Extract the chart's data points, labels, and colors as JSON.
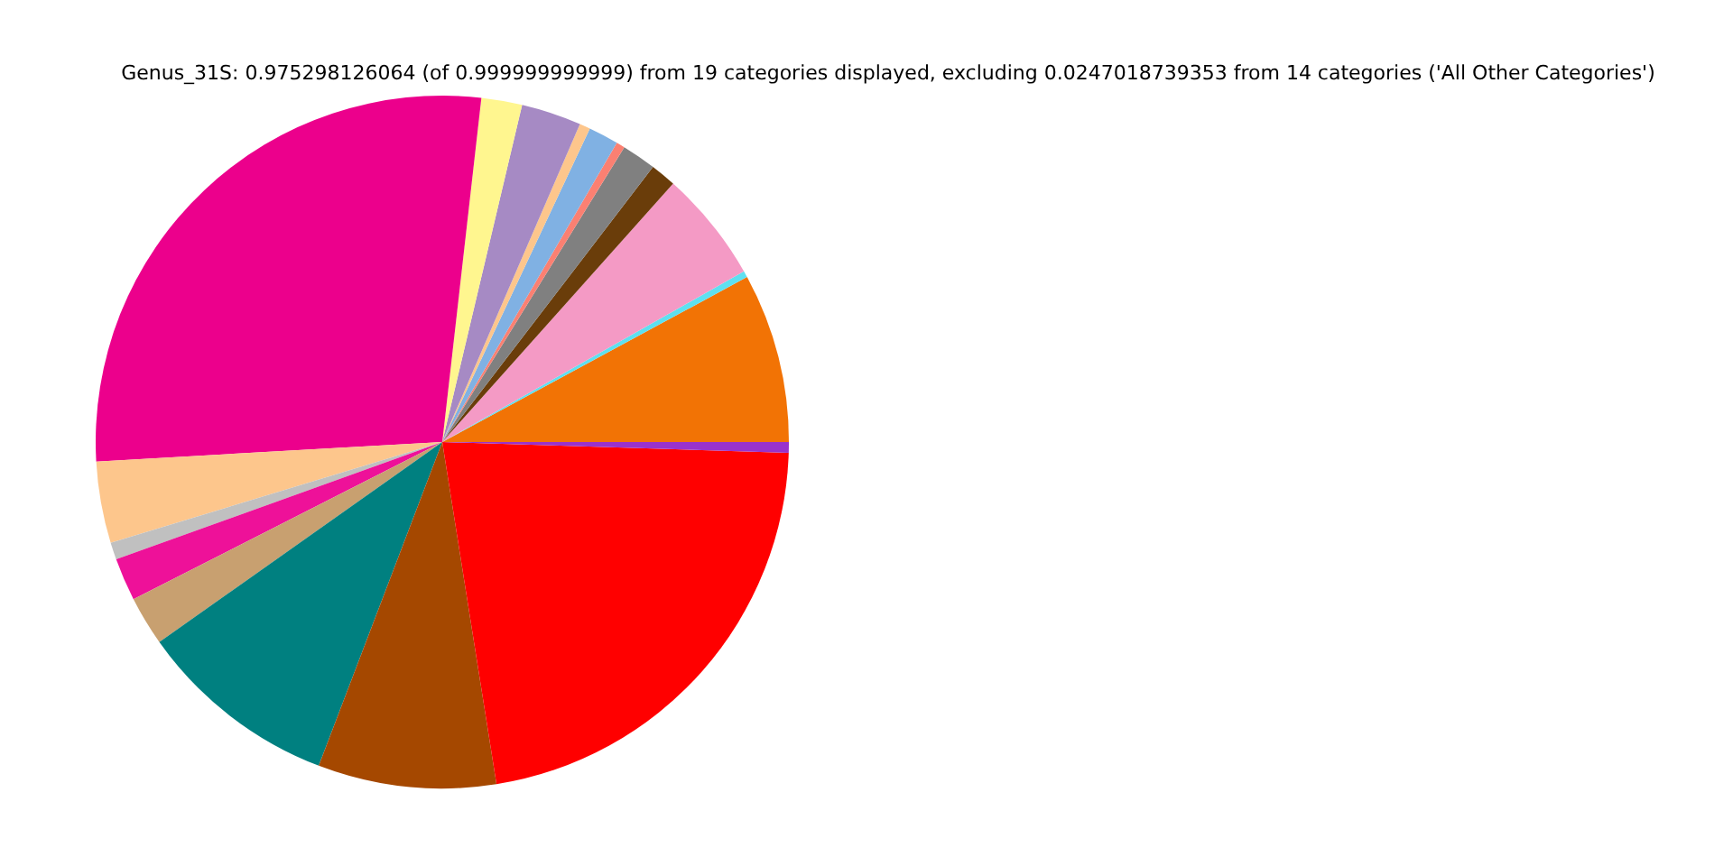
{
  "chart_data": {
    "type": "pie",
    "title": "Genus_31S: 0.975298126064 (of 0.999999999999) from 19 categories displayed, excluding 0.0247018739353 from 14 categories ('All Other Categories')",
    "categories": [
      null,
      null,
      null,
      null,
      null,
      null,
      null,
      null,
      null,
      null,
      null,
      null,
      null,
      null,
      null,
      null,
      null,
      null,
      null
    ],
    "values": [
      7.9,
      0.3,
      5.2,
      1.2,
      1.6,
      0.4,
      1.4,
      0.5,
      2.8,
      1.9,
      27.7,
      3.8,
      0.8,
      2.0,
      2.3,
      9.4,
      8.3,
      22.0,
      0.5
    ],
    "colors": [
      "#f27305",
      "#5ee0f0",
      "#f49ac5",
      "#6a3d0a",
      "#808080",
      "#fb8072",
      "#80b1e3",
      "#fdc68c",
      "#a68ac4",
      "#fff68f",
      "#ec008c",
      "#fdc68c",
      "#c0c0c0",
      "#ee1199",
      "#c8a070",
      "#008080",
      "#a54800",
      "#ff0000",
      "#9932cc"
    ]
  }
}
